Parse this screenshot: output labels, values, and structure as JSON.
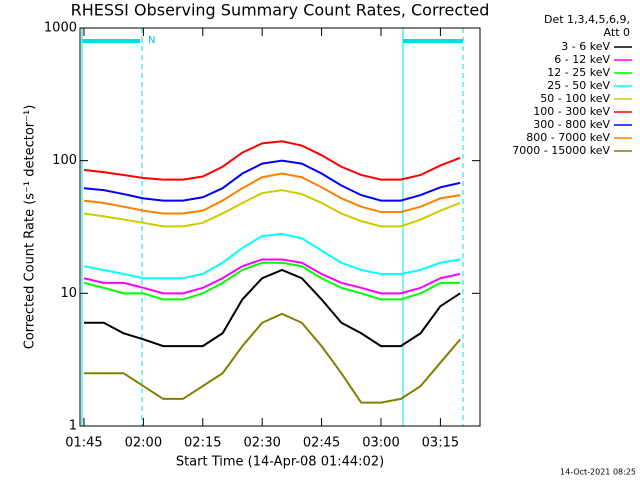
{
  "chart_data": {
    "type": "line",
    "title": "RHESSI Observing Summary Count Rates, Corrected",
    "legend_title": [
      "Det 1,3,4,5,6,9,",
      "Att 0"
    ],
    "x_label": "Start Time (14-Apr-08 01:44:02)",
    "y_label": "Corrected Count Rate (s⁻¹ detector⁻¹)",
    "annotation": "N",
    "timestamp": "14-Oct-2021 08:25",
    "log_y": true,
    "ylim": [
      1,
      1000
    ],
    "yticks": [
      1,
      10,
      100,
      1000
    ],
    "xlim": [
      "01:44",
      "03:25"
    ],
    "xticks": [
      "01:45",
      "02:00",
      "02:15",
      "02:30",
      "02:45",
      "03:00",
      "03:15"
    ],
    "x": [
      "01:45",
      "01:50",
      "01:55",
      "02:00",
      "02:05",
      "02:10",
      "02:15",
      "02:20",
      "02:25",
      "02:30",
      "02:35",
      "02:40",
      "02:45",
      "02:50",
      "02:55",
      "03:00",
      "03:05",
      "03:10",
      "03:15",
      "03:20"
    ],
    "series": [
      {
        "name": "3 - 6 keV",
        "color": "#000000",
        "values": [
          6,
          6,
          5,
          4.5,
          4,
          4,
          4,
          5,
          9,
          13,
          15,
          13,
          9,
          6,
          5,
          4,
          4,
          5,
          8,
          10
        ]
      },
      {
        "name": "6 - 12 keV",
        "color": "#ff00ff",
        "values": [
          13,
          12,
          12,
          11,
          10,
          10,
          11,
          13,
          16,
          18,
          18,
          17,
          14,
          12,
          11,
          10,
          10,
          11,
          13,
          14
        ]
      },
      {
        "name": "12 - 25 keV",
        "color": "#00ff00",
        "values": [
          12,
          11,
          10,
          10,
          9,
          9,
          10,
          12,
          15,
          17,
          17,
          16,
          13,
          11,
          10,
          9,
          9,
          10,
          12,
          12
        ]
      },
      {
        "name": "25 - 50 keV",
        "color": "#00ffff",
        "values": [
          16,
          15,
          14,
          13,
          13,
          13,
          14,
          17,
          22,
          27,
          28,
          26,
          21,
          17,
          15,
          14,
          14,
          15,
          17,
          18
        ]
      },
      {
        "name": "50 - 100 keV",
        "color": "#cccc00",
        "values": [
          40,
          38,
          36,
          34,
          32,
          32,
          34,
          40,
          48,
          57,
          60,
          56,
          48,
          40,
          35,
          32,
          32,
          36,
          42,
          48
        ]
      },
      {
        "name": "100 - 300 keV",
        "color": "#ff0000",
        "values": [
          85,
          82,
          78,
          74,
          72,
          72,
          76,
          90,
          115,
          135,
          140,
          130,
          110,
          90,
          78,
          72,
          72,
          78,
          92,
          105
        ]
      },
      {
        "name": "300 - 800 keV",
        "color": "#0000ff",
        "values": [
          62,
          60,
          56,
          52,
          50,
          50,
          53,
          62,
          80,
          95,
          100,
          95,
          80,
          65,
          55,
          50,
          50,
          55,
          63,
          68
        ]
      },
      {
        "name": "800 - 7000 keV",
        "color": "#ff8000",
        "values": [
          50,
          48,
          45,
          42,
          40,
          40,
          42,
          50,
          62,
          75,
          80,
          75,
          63,
          52,
          45,
          41,
          41,
          45,
          52,
          55
        ]
      },
      {
        "name": "7000 - 15000 keV",
        "color": "#808000",
        "values": [
          2.5,
          2.5,
          2.5,
          2,
          1.6,
          1.6,
          2,
          2.5,
          4,
          6,
          7,
          6,
          4,
          2.5,
          1.5,
          1.5,
          1.6,
          2,
          3,
          4.5
        ]
      }
    ]
  }
}
